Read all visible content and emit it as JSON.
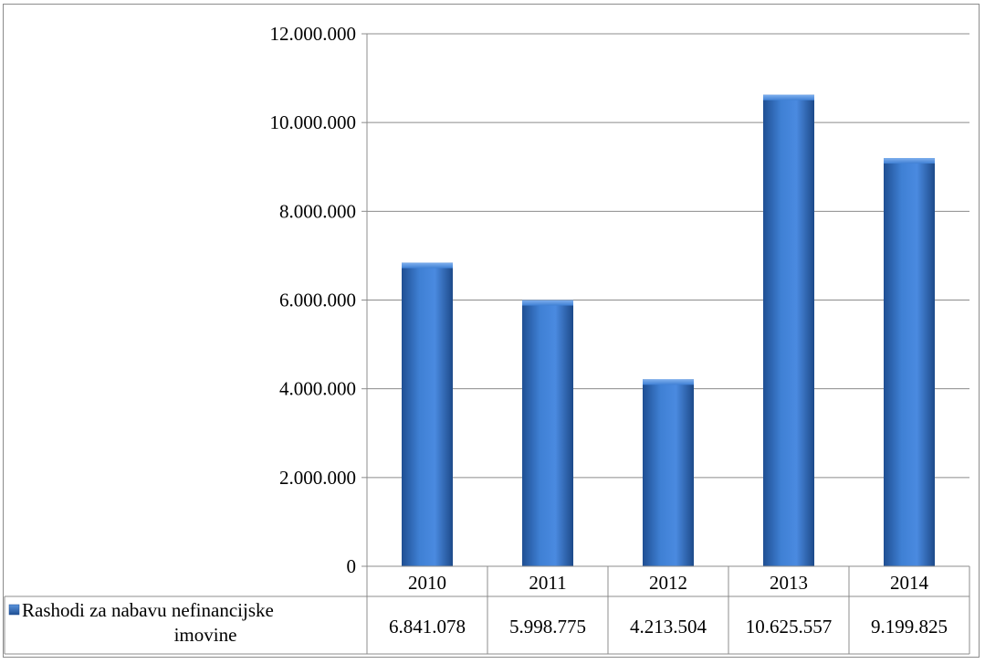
{
  "chart_data": {
    "type": "bar",
    "title": "",
    "xlabel": "",
    "ylabel": "",
    "categories": [
      "2010",
      "2011",
      "2012",
      "2013",
      "2014"
    ],
    "series": [
      {
        "name": "Rashodi za nabavu nefinancijske imovine",
        "values": [
          6841078,
          5998775,
          4213504,
          10625557,
          9199825
        ],
        "value_labels": [
          "6.841.078",
          "5.998.775",
          "4.213.504",
          "10.625.557",
          "9.199.825"
        ],
        "color": "#3a78c9"
      }
    ],
    "ylim": [
      0,
      12000000
    ],
    "y_ticks": [
      0,
      2000000,
      4000000,
      6000000,
      8000000,
      10000000,
      12000000
    ],
    "y_tick_labels": [
      "0",
      "2.000.000",
      "4.000.000",
      "6.000.000",
      "8.000.000",
      "10.000.000",
      "12.000.000"
    ],
    "grid": true,
    "legend": "data-table"
  },
  "legend_label_lines": [
    "Rashodi za nabavu nefinancijske",
    "imovine"
  ]
}
